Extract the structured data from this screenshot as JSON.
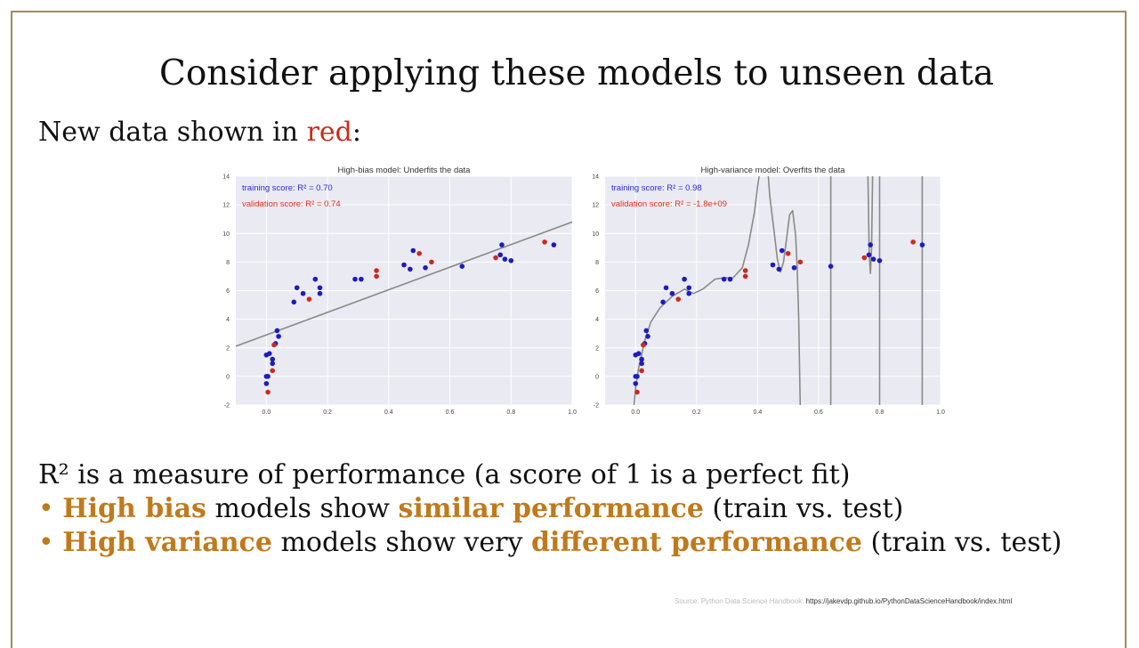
{
  "slide": {
    "title": "Consider applying these models to unseen data",
    "subtitle_prefix": "New data shown in ",
    "subtitle_red": "red",
    "subtitle_suffix": ":",
    "r2_line": "R² is a measure of performance (a score of 1 is a perfect fit)",
    "bullet_marker": "•",
    "bullet1": {
      "strong1": "High bias",
      "mid": " models show ",
      "strong2": "similar performance",
      "end": " (train vs. test)"
    },
    "bullet2": {
      "strong1": "High variance",
      "mid": " models show very ",
      "strong2": "different performance",
      "end": " (train vs. test)"
    },
    "source_label": "Source: Python Data Science  Handbook:",
    "source_url": "https://jakevdp.github.io/PythonDataScienceHandbook/index.html",
    "colors": {
      "accent": "#c07a1c",
      "red": "#cc2a1c",
      "frame": "#a08c5e"
    }
  },
  "chart_data": [
    {
      "type": "scatter",
      "title": "High-bias model: Underfits the data",
      "xlim": [
        -0.1,
        1.0
      ],
      "ylim": [
        -2,
        14
      ],
      "xticks": [
        "0.0",
        "0.2",
        "0.4",
        "0.6",
        "0.8",
        "1.0"
      ],
      "yticks": [
        "-2",
        "0",
        "2",
        "4",
        "6",
        "8",
        "10",
        "12",
        "14"
      ],
      "grid": true,
      "training_label": "training score: R² = 0.70",
      "validation_label": "validation score: R² = 0.74",
      "series": [
        {
          "name": "training",
          "color": "#1c1cc0",
          "points": [
            [
              0.0,
              0.0
            ],
            [
              0.0,
              -0.5
            ],
            [
              0.005,
              0.0
            ],
            [
              0.0,
              1.5
            ],
            [
              0.01,
              1.6
            ],
            [
              0.02,
              1.2
            ],
            [
              0.02,
              0.9
            ],
            [
              0.03,
              2.3
            ],
            [
              0.035,
              3.2
            ],
            [
              0.04,
              2.8
            ],
            [
              0.09,
              5.2
            ],
            [
              0.1,
              6.2
            ],
            [
              0.12,
              5.8
            ],
            [
              0.16,
              6.8
            ],
            [
              0.175,
              6.2
            ],
            [
              0.175,
              5.8
            ],
            [
              0.29,
              6.8
            ],
            [
              0.31,
              6.8
            ],
            [
              0.45,
              7.8
            ],
            [
              0.47,
              7.5
            ],
            [
              0.48,
              8.8
            ],
            [
              0.52,
              7.6
            ],
            [
              0.64,
              7.7
            ],
            [
              0.765,
              8.5
            ],
            [
              0.77,
              9.2
            ],
            [
              0.78,
              8.2
            ],
            [
              0.8,
              8.1
            ],
            [
              0.94,
              9.2
            ]
          ]
        },
        {
          "name": "validation",
          "color": "#cc2a1c",
          "points": [
            [
              0.005,
              -1.1
            ],
            [
              0.02,
              0.4
            ],
            [
              0.025,
              2.2
            ],
            [
              0.14,
              5.4
            ],
            [
              0.36,
              7.4
            ],
            [
              0.36,
              7.0
            ],
            [
              0.5,
              8.6
            ],
            [
              0.54,
              8.0
            ],
            [
              0.75,
              8.3
            ],
            [
              0.91,
              9.4
            ]
          ]
        }
      ],
      "model": {
        "kind": "line",
        "intercept": 2.9,
        "slope": 7.9
      }
    },
    {
      "type": "scatter",
      "title": "High-variance model: Overfits the data",
      "xlim": [
        -0.1,
        1.0
      ],
      "ylim": [
        -2,
        14
      ],
      "xticks": [
        "0.0",
        "0.2",
        "0.4",
        "0.6",
        "0.8",
        "1.0"
      ],
      "yticks": [
        "-2",
        "0",
        "2",
        "4",
        "6",
        "8",
        "10",
        "12",
        "14"
      ],
      "grid": true,
      "training_label": "training score: R² = 0.98",
      "validation_label": "validation score: R² = -1.8e+09",
      "series": [
        {
          "name": "training",
          "color": "#1c1cc0",
          "points": [
            [
              0.0,
              0.0
            ],
            [
              0.0,
              -0.5
            ],
            [
              0.005,
              0.0
            ],
            [
              0.0,
              1.5
            ],
            [
              0.01,
              1.6
            ],
            [
              0.02,
              1.2
            ],
            [
              0.02,
              0.9
            ],
            [
              0.03,
              2.3
            ],
            [
              0.035,
              3.2
            ],
            [
              0.04,
              2.8
            ],
            [
              0.09,
              5.2
            ],
            [
              0.1,
              6.2
            ],
            [
              0.12,
              5.8
            ],
            [
              0.16,
              6.8
            ],
            [
              0.175,
              6.2
            ],
            [
              0.175,
              5.8
            ],
            [
              0.29,
              6.8
            ],
            [
              0.31,
              6.8
            ],
            [
              0.45,
              7.8
            ],
            [
              0.47,
              7.5
            ],
            [
              0.48,
              8.8
            ],
            [
              0.52,
              7.6
            ],
            [
              0.64,
              7.7
            ],
            [
              0.765,
              8.5
            ],
            [
              0.77,
              9.2
            ],
            [
              0.78,
              8.2
            ],
            [
              0.8,
              8.1
            ],
            [
              0.94,
              9.2
            ]
          ]
        },
        {
          "name": "validation",
          "color": "#cc2a1c",
          "points": [
            [
              0.005,
              -1.1
            ],
            [
              0.02,
              0.4
            ],
            [
              0.025,
              2.2
            ],
            [
              0.14,
              5.4
            ],
            [
              0.36,
              7.4
            ],
            [
              0.36,
              7.0
            ],
            [
              0.5,
              8.6
            ],
            [
              0.54,
              8.0
            ],
            [
              0.75,
              8.3
            ],
            [
              0.91,
              9.4
            ]
          ]
        }
      ],
      "model": {
        "kind": "curve",
        "segments": [
          [
            [
              -0.005,
              -2
            ],
            [
              0.0,
              -0.8
            ],
            [
              0.01,
              0.6
            ],
            [
              0.03,
              2.5
            ],
            [
              0.05,
              3.8
            ],
            [
              0.08,
              4.8
            ],
            [
              0.12,
              5.6
            ],
            [
              0.16,
              6.1
            ],
            [
              0.19,
              5.8
            ],
            [
              0.22,
              6.1
            ],
            [
              0.26,
              6.8
            ],
            [
              0.29,
              6.9
            ],
            [
              0.32,
              6.9
            ],
            [
              0.35,
              7.6
            ],
            [
              0.37,
              9.2
            ],
            [
              0.39,
              11.5
            ],
            [
              0.4,
              13.3
            ],
            [
              0.405,
              14
            ]
          ],
          [
            [
              0.435,
              14
            ],
            [
              0.44,
              12.6
            ],
            [
              0.455,
              10.0
            ],
            [
              0.465,
              8.2
            ],
            [
              0.475,
              7.3
            ],
            [
              0.485,
              8.0
            ],
            [
              0.495,
              9.6
            ],
            [
              0.505,
              11.3
            ],
            [
              0.515,
              11.6
            ],
            [
              0.525,
              9.8
            ],
            [
              0.53,
              7.5
            ],
            [
              0.535,
              4.0
            ],
            [
              0.538,
              0.0
            ],
            [
              0.54,
              -2
            ]
          ],
          [
            [
              0.64,
              -2
            ],
            [
              0.64,
              14
            ]
          ],
          [
            [
              0.762,
              14
            ],
            [
              0.766,
              8.5
            ],
            [
              0.77,
              7.2
            ],
            [
              0.774,
              9.0
            ],
            [
              0.777,
              14
            ]
          ],
          [
            [
              0.8,
              14
            ],
            [
              0.8,
              -2
            ]
          ],
          [
            [
              0.94,
              14
            ],
            [
              0.94,
              -2
            ]
          ]
        ]
      }
    }
  ]
}
